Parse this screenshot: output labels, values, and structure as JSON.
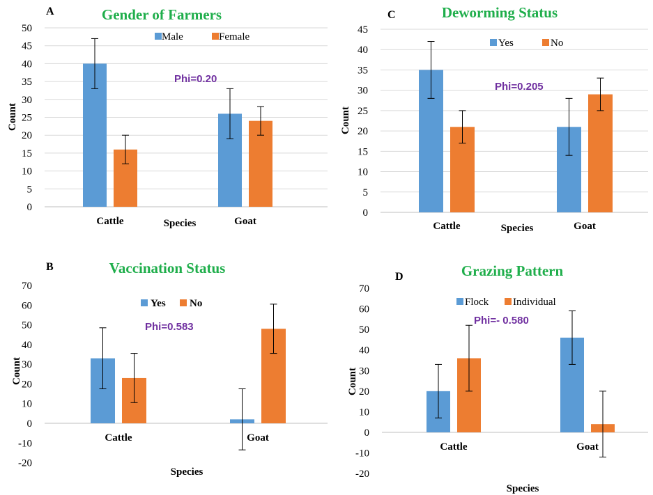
{
  "colors": {
    "blue": "#5b9bd5",
    "orange": "#ed7d31",
    "title": "#1fae4b",
    "phi": "#7030a0"
  },
  "chart_data": [
    {
      "type": "bar",
      "panel_label": "A",
      "title": "Gender of Farmers",
      "xlabel": "Species",
      "ylabel": "Count",
      "ylim": [
        0,
        50
      ],
      "ytick_step": 5,
      "categories": [
        "Cattle",
        "Goat"
      ],
      "series": [
        {
          "name": "Male",
          "values": [
            40,
            26
          ],
          "error_low": [
            33,
            19
          ],
          "error_high": [
            47,
            33
          ]
        },
        {
          "name": "Female",
          "values": [
            16,
            24
          ],
          "error_low": [
            12,
            20
          ],
          "error_high": [
            20,
            28
          ]
        }
      ],
      "annotation": "Phi=0.20",
      "legend": "top-center",
      "grid": true
    },
    {
      "type": "bar",
      "panel_label": "C",
      "title": "Deworming Status",
      "xlabel": "Species",
      "ylabel": "Count",
      "ylim": [
        0,
        45
      ],
      "ytick_step": 5,
      "categories": [
        "Cattle",
        "Goat"
      ],
      "series": [
        {
          "name": "Yes",
          "values": [
            35,
            21
          ],
          "error_low": [
            28,
            14
          ],
          "error_high": [
            42,
            28
          ]
        },
        {
          "name": "No",
          "values": [
            21,
            29
          ],
          "error_low": [
            17,
            25
          ],
          "error_high": [
            25,
            33
          ]
        }
      ],
      "annotation": "Phi=0.205",
      "legend": "top-center",
      "grid": true
    },
    {
      "type": "bar",
      "panel_label": "B",
      "title": "Vaccination Status",
      "xlabel": "Species",
      "ylabel": "Count",
      "ylim": [
        -20,
        70
      ],
      "ytick_step": 10,
      "categories": [
        "Cattle",
        "Goat"
      ],
      "series": [
        {
          "name": "Yes",
          "values": [
            33,
            2
          ],
          "error_low": [
            17.5,
            -13.5
          ],
          "error_high": [
            48.5,
            17.5
          ]
        },
        {
          "name": "No",
          "values": [
            23,
            48
          ],
          "error_low": [
            10.5,
            35.5
          ],
          "error_high": [
            35.5,
            60.5
          ]
        }
      ],
      "annotation": "Phi=0.583",
      "legend": "top-center",
      "grid": false
    },
    {
      "type": "bar",
      "panel_label": "D",
      "title": "Grazing Pattern",
      "xlabel": "Species",
      "ylabel": "Count",
      "ylim": [
        -20,
        70
      ],
      "ytick_step": 10,
      "categories": [
        "Cattle",
        "Goat"
      ],
      "series": [
        {
          "name": "Flock",
          "values": [
            20,
            46
          ],
          "error_low": [
            7,
            33
          ],
          "error_high": [
            33,
            59
          ]
        },
        {
          "name": "Individual",
          "values": [
            36,
            4
          ],
          "error_low": [
            20,
            -12
          ],
          "error_high": [
            52,
            20
          ]
        }
      ],
      "annotation": "Phi=- 0.580",
      "legend": "top-center",
      "grid": false
    }
  ]
}
